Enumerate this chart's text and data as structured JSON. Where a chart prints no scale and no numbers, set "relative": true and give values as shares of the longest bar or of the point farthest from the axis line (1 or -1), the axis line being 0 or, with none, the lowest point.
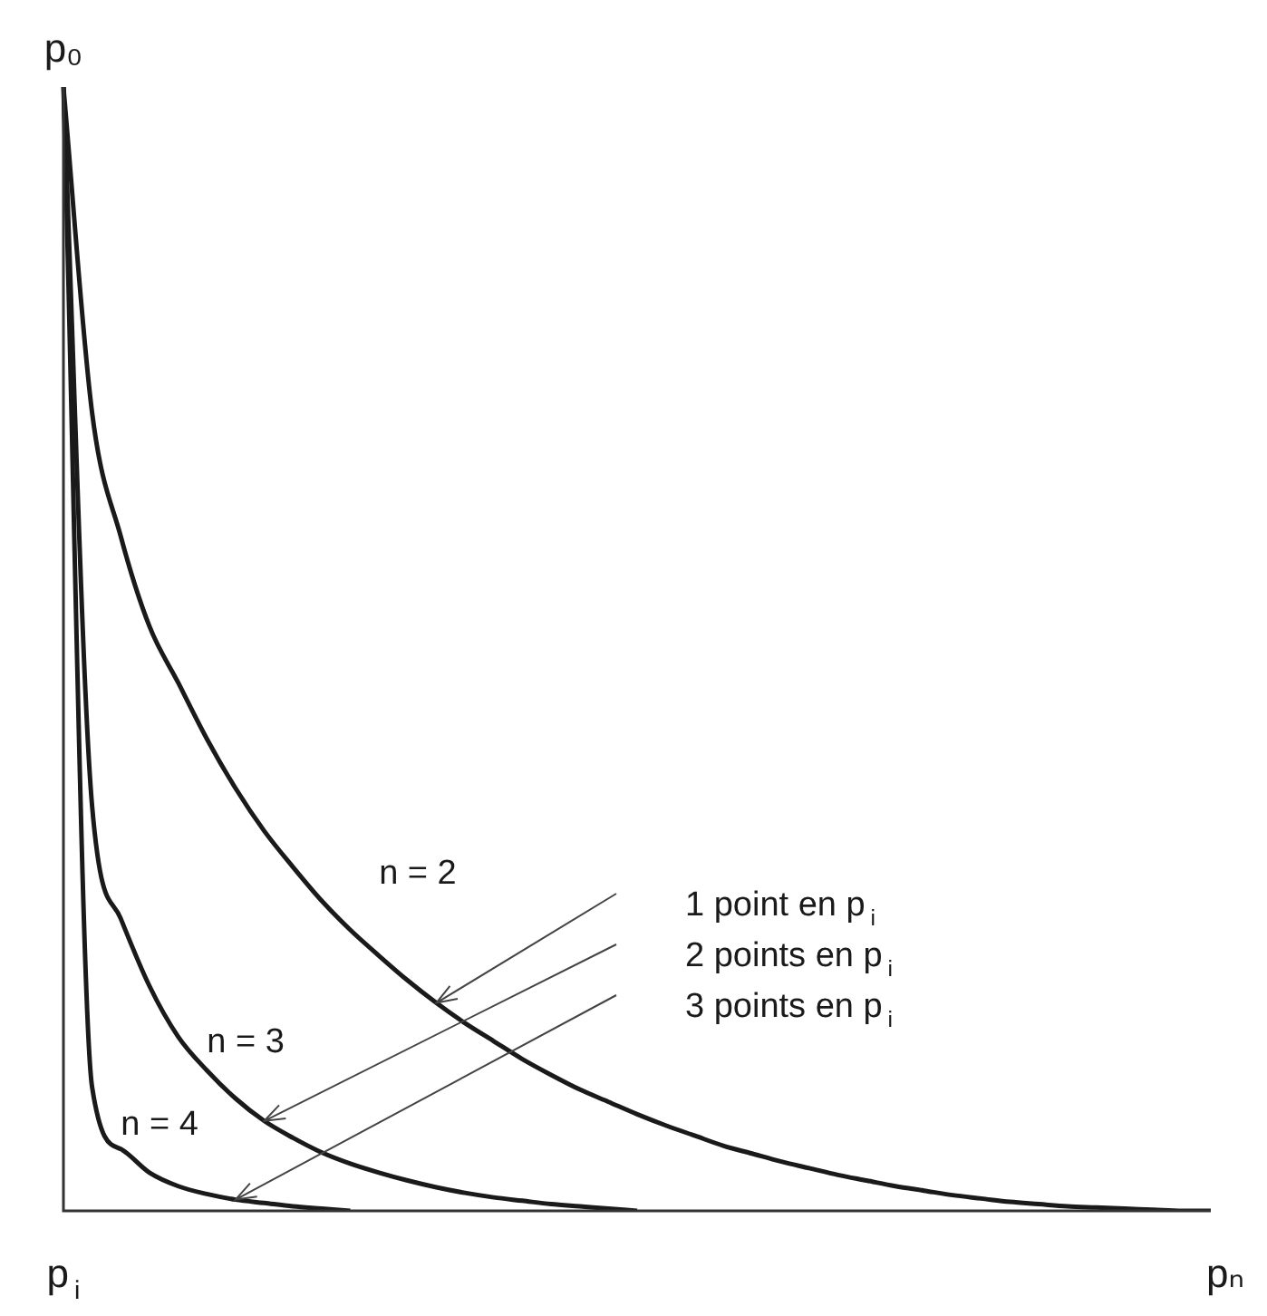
{
  "chart_data": {
    "type": "line",
    "relative": true,
    "grid": false,
    "legend": false,
    "marker": "none",
    "line_style": "solid",
    "categories": [
      null,
      null,
      null,
      null,
      null,
      null,
      null,
      null,
      null,
      null,
      null,
      null,
      null,
      null,
      null,
      null,
      null,
      null,
      null,
      null,
      null,
      null,
      null,
      null,
      null,
      null,
      null,
      null,
      null,
      null,
      null,
      null,
      null,
      null,
      null,
      null,
      null,
      null,
      null,
      null,
      null
    ],
    "series": [
      {
        "name": "n = 2",
        "color": "#1a1a1a",
        "values": [
          1,
          0.71,
          0.6,
          0.52,
          0.47,
          0.42,
          0.376,
          0.338,
          0.306,
          0.276,
          0.25,
          0.227,
          0.205,
          0.185,
          0.167,
          0.151,
          0.135,
          0.121,
          0.108,
          0.097,
          0.086,
          0.076,
          0.067,
          0.058,
          0.051,
          0.044,
          0.038,
          0.032,
          0.027,
          0.022,
          0.018,
          0.014,
          0.011,
          0.008,
          0.006,
          0.004,
          0.003,
          0.002,
          0.001,
          0,
          0
        ]
      },
      {
        "name": "n = 3",
        "color": "#1a1a1a",
        "values": [
          1,
          0.36,
          0.26,
          0.2,
          0.155,
          0.125,
          0.1,
          0.08,
          0.065,
          0.052,
          0.042,
          0.034,
          0.027,
          0.021,
          0.016,
          0.012,
          0.009,
          0.006,
          0.004,
          0.002,
          0,
          null,
          null,
          null,
          null,
          null,
          null,
          null,
          null,
          null,
          null,
          null,
          null,
          null,
          null,
          null,
          null,
          null,
          null,
          null,
          null
        ]
      },
      {
        "name": "n = 4",
        "color": "#1a1a1a",
        "values": [
          1,
          0.11,
          0.055,
          0.034,
          0.022,
          0.015,
          0.01,
          0.007,
          0.004,
          0.002,
          0,
          null,
          null,
          null,
          null,
          null,
          null,
          null,
          null,
          null,
          null,
          null,
          null,
          null,
          null,
          null,
          null,
          null,
          null,
          null,
          null,
          null,
          null,
          null,
          null,
          null,
          null,
          null,
          null,
          null,
          null
        ]
      }
    ],
    "annotations": [
      "p₀",
      "p$_{i}$",
      "pₙ",
      "1 point en p$_{i}$",
      "2 points en p$_{i}$",
      "3 points en p$_{i}$"
    ]
  }
}
